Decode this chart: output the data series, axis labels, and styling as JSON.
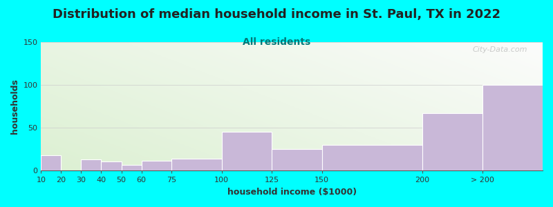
{
  "title": "Distribution of median household income in St. Paul, TX in 2022",
  "subtitle": "All residents",
  "xlabel": "household income ($1000)",
  "ylabel": "households",
  "bin_edges": [
    10,
    20,
    30,
    40,
    50,
    60,
    75,
    100,
    125,
    150,
    200,
    230,
    260
  ],
  "bin_labels": [
    "10",
    "20",
    "30",
    "40",
    "50",
    "60",
    "75",
    "100",
    "125",
    "150",
    "200",
    "> 200"
  ],
  "values": [
    18,
    0,
    13,
    11,
    7,
    12,
    14,
    45,
    25,
    30,
    67,
    100
  ],
  "bar_color": "#c9b8d8",
  "bar_edge_color": "#ffffff",
  "ylim": [
    0,
    150
  ],
  "yticks": [
    0,
    50,
    100,
    150
  ],
  "background_color": "#00ffff",
  "watermark": "City-Data.com",
  "title_fontsize": 13,
  "subtitle_fontsize": 10,
  "subtitle_color": "#007878",
  "axis_label_fontsize": 9,
  "tick_fontsize": 8
}
